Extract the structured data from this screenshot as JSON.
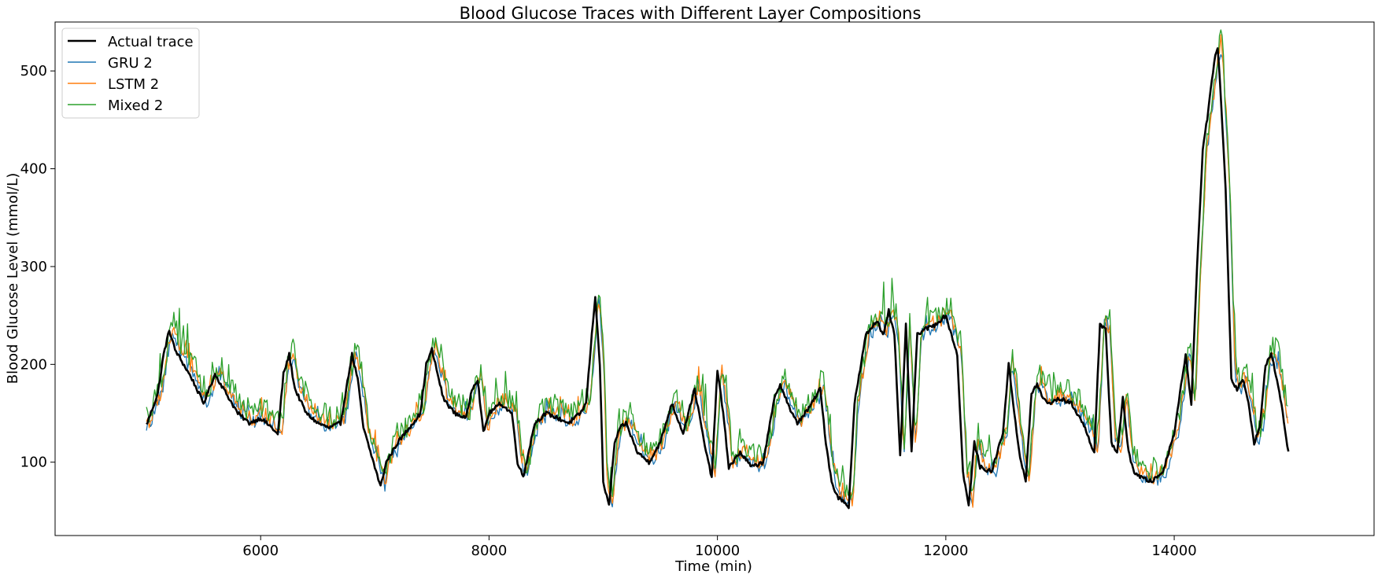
{
  "chart_data": {
    "type": "line",
    "title": "Blood Glucose Traces with Different Layer Compositions",
    "xlabel": "Time (min)",
    "ylabel": "Blood Glucose Level (mmol/L)",
    "xlim": [
      4200,
      15750
    ],
    "ylim": [
      25,
      550
    ],
    "xticks": [
      6000,
      8000,
      10000,
      12000,
      14000
    ],
    "yticks": [
      100,
      200,
      300,
      400,
      500
    ],
    "xtick_labels": [
      "6000",
      "8000",
      "10000",
      "12000",
      "14000"
    ],
    "ytick_labels": [
      "100",
      "200",
      "300",
      "400",
      "500"
    ],
    "legend_position": "upper-left",
    "noise_amplitude": [
      0,
      7,
      8,
      12
    ],
    "value_offset": [
      0,
      0,
      4,
      10
    ],
    "series": [
      {
        "name": "Actual trace",
        "color": "#000000",
        "x": [
          5000,
          5100,
          5150,
          5200,
          5250,
          5300,
          5400,
          5500,
          5600,
          5700,
          5800,
          5900,
          6000,
          6100,
          6150,
          6200,
          6250,
          6300,
          6400,
          6500,
          6600,
          6700,
          6800,
          6850,
          6900,
          7000,
          7050,
          7100,
          7200,
          7300,
          7400,
          7450,
          7500,
          7550,
          7600,
          7700,
          7800,
          7850,
          7900,
          7950,
          8000,
          8100,
          8200,
          8250,
          8300,
          8400,
          8500,
          8600,
          8700,
          8800,
          8850,
          8900,
          8930,
          8970,
          9000,
          9050,
          9100,
          9150,
          9200,
          9300,
          9400,
          9500,
          9600,
          9700,
          9800,
          9900,
          9950,
          10000,
          10050,
          10100,
          10200,
          10300,
          10400,
          10500,
          10550,
          10600,
          10650,
          10700,
          10800,
          10900,
          10950,
          11000,
          11050,
          11100,
          11150,
          11200,
          11300,
          11400,
          11450,
          11500,
          11550,
          11600,
          11650,
          11700,
          11750,
          11800,
          11900,
          12000,
          12050,
          12100,
          12150,
          12200,
          12250,
          12300,
          12400,
          12500,
          12550,
          12600,
          12650,
          12700,
          12750,
          12800,
          12850,
          12900,
          13000,
          13100,
          13200,
          13300,
          13350,
          13400,
          13450,
          13500,
          13550,
          13600,
          13650,
          13700,
          13800,
          13900,
          14000,
          14050,
          14100,
          14150,
          14200,
          14250,
          14300,
          14350,
          14380,
          14400,
          14450,
          14500,
          14550,
          14600,
          14650,
          14700,
          14750,
          14800,
          14850,
          14900,
          14950,
          15000
        ],
        "values": [
          138,
          170,
          210,
          235,
          215,
          205,
          185,
          160,
          190,
          170,
          150,
          140,
          145,
          135,
          128,
          190,
          210,
          175,
          150,
          140,
          135,
          140,
          210,
          185,
          135,
          95,
          75,
          100,
          120,
          135,
          150,
          200,
          215,
          190,
          165,
          150,
          145,
          175,
          185,
          130,
          150,
          160,
          150,
          100,
          85,
          140,
          150,
          145,
          140,
          150,
          160,
          230,
          270,
          200,
          80,
          55,
          120,
          135,
          140,
          110,
          100,
          120,
          160,
          130,
          175,
          110,
          85,
          195,
          150,
          95,
          110,
          95,
          100,
          165,
          180,
          165,
          150,
          140,
          155,
          175,
          120,
          80,
          65,
          60,
          55,
          160,
          230,
          245,
          230,
          255,
          230,
          105,
          240,
          110,
          230,
          235,
          240,
          250,
          230,
          210,
          90,
          55,
          120,
          95,
          90,
          130,
          200,
          150,
          105,
          80,
          170,
          180,
          165,
          160,
          165,
          160,
          140,
          110,
          240,
          235,
          120,
          110,
          165,
          110,
          90,
          85,
          80,
          90,
          130,
          170,
          210,
          160,
          300,
          420,
          460,
          510,
          525,
          490,
          380,
          185,
          175,
          185,
          160,
          120,
          135,
          200,
          210,
          185,
          150,
          110
        ]
      },
      {
        "name": "GRU 2",
        "color": "#1f77b4"
      },
      {
        "name": "LSTM 2",
        "color": "#ff7f0e"
      },
      {
        "name": "Mixed 2",
        "color": "#2ca02c"
      }
    ]
  }
}
